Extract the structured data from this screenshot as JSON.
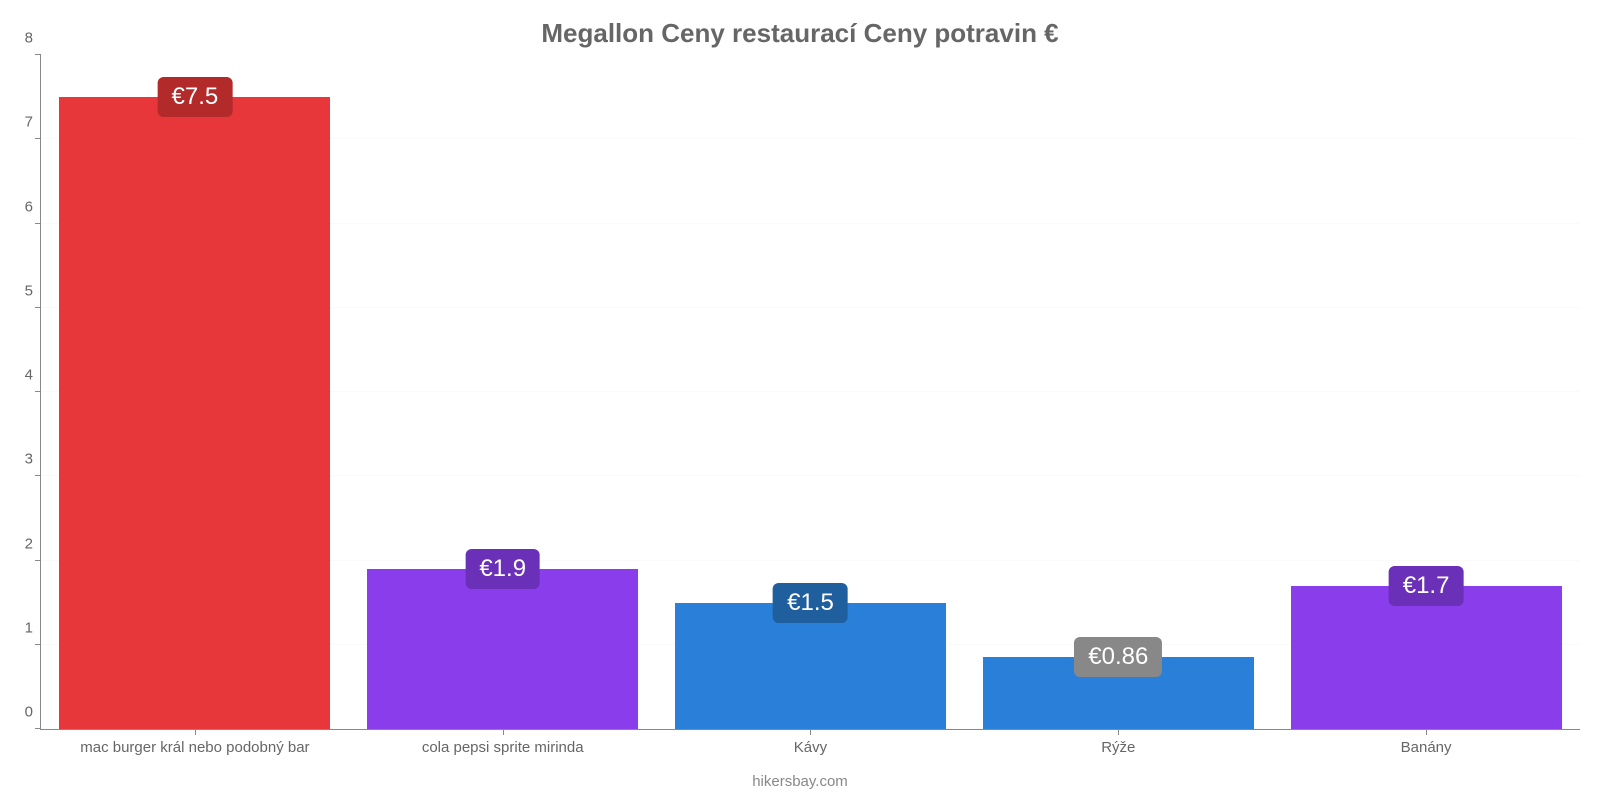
{
  "chart": {
    "type": "bar",
    "title": "Megallon Ceny restaurací Ceny potravin €",
    "title_fontsize": 26,
    "title_color": "#666666",
    "footer": "hikersbay.com",
    "footer_fontsize": 15,
    "footer_color": "#888888",
    "background_color": "#ffffff",
    "axis_color": "#888888",
    "grid_color": "#fafafa",
    "tick_label_color": "#666666",
    "tick_label_fontsize": 15,
    "ylim": [
      0,
      8
    ],
    "ytick_step": 1,
    "value_label_fontsize": 24,
    "value_label_color": "#ffffff",
    "bar_width_ratio": 0.88,
    "categories": [
      "mac burger král nebo podobný bar",
      "cola pepsi sprite mirinda",
      "Kávy",
      "Rýže",
      "Banány"
    ],
    "values": [
      7.5,
      1.9,
      1.5,
      0.86,
      1.7
    ],
    "value_labels": [
      "€7.5",
      "€1.9",
      "€1.5",
      "€0.86",
      "€1.7"
    ],
    "bar_colors": [
      "#e8373a",
      "#8a3eeb",
      "#2a7fd8",
      "#2a7fd8",
      "#8a3eeb"
    ],
    "label_bg_colors": [
      "#b22a2a",
      "#6a30b8",
      "#1f5f9e",
      "#888888",
      "#6a30b8"
    ]
  }
}
